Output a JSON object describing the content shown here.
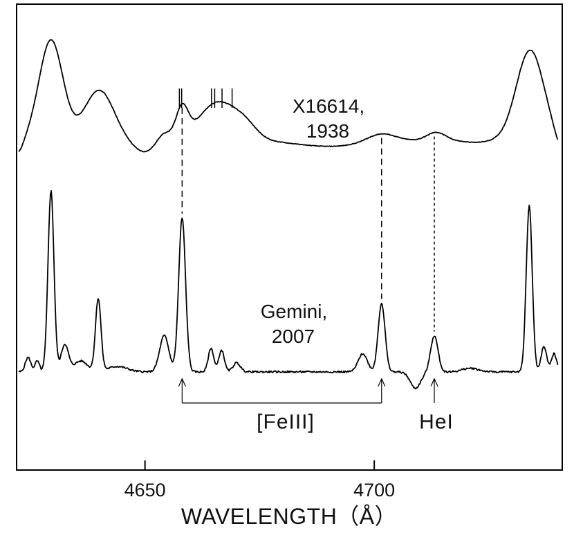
{
  "chart_data": {
    "type": "line",
    "xlabel": "WAVELENGTH（Å）",
    "ylabel": "",
    "xlim": [
      4622,
      4741
    ],
    "xticks": [
      4650,
      4700
    ],
    "xtick_labels": [
      "4650",
      "4700"
    ],
    "grid": false,
    "series": [
      {
        "name": "X16614, 1938",
        "label_lines": [
          "X16614,",
          "1938"
        ],
        "peaks": [
          {
            "x": 4629.5,
            "height": 1.0,
            "width": 2.6
          },
          {
            "x": 4640.0,
            "height": 0.5,
            "width": 3.2
          },
          {
            "x": 4654.0,
            "height": 0.1,
            "width": 1.6
          },
          {
            "x": 4658.1,
            "height": 0.3,
            "width": 1.3
          },
          {
            "x": 4666.0,
            "height": 0.38,
            "width": 4.2
          },
          {
            "x": 4672.0,
            "height": 0.1,
            "width": 2.5
          },
          {
            "x": 4701.5,
            "height": 0.08,
            "width": 3.0
          },
          {
            "x": 4713.5,
            "height": 0.08,
            "width": 2.0
          },
          {
            "x": 4734.0,
            "height": 0.9,
            "width": 3.0
          }
        ]
      },
      {
        "name": "Gemini, 2007",
        "label_lines": [
          "Gemini,",
          "2007"
        ],
        "peaks": [
          {
            "x": 4624.5,
            "height": 0.08,
            "width": 0.6
          },
          {
            "x": 4626.5,
            "height": 0.06,
            "width": 0.5
          },
          {
            "x": 4629.5,
            "height": 1.0,
            "width": 0.65
          },
          {
            "x": 4632.5,
            "height": 0.15,
            "width": 0.8
          },
          {
            "x": 4636.0,
            "height": 0.06,
            "width": 1.5
          },
          {
            "x": 4639.8,
            "height": 0.4,
            "width": 0.6
          },
          {
            "x": 4654.2,
            "height": 0.2,
            "width": 1.0
          },
          {
            "x": 4658.1,
            "height": 0.85,
            "width": 0.75
          },
          {
            "x": 4664.4,
            "height": 0.13,
            "width": 0.6
          },
          {
            "x": 4666.7,
            "height": 0.12,
            "width": 0.6
          },
          {
            "x": 4670.0,
            "height": 0.05,
            "width": 0.8
          },
          {
            "x": 4697.5,
            "height": 0.1,
            "width": 1.0
          },
          {
            "x": 4701.6,
            "height": 0.38,
            "width": 0.75
          },
          {
            "x": 4713.1,
            "height": 0.2,
            "width": 0.8
          },
          {
            "x": 4733.8,
            "height": 0.92,
            "width": 0.65
          },
          {
            "x": 4737.0,
            "height": 0.14,
            "width": 0.6
          },
          {
            "x": 4739.2,
            "height": 0.1,
            "width": 0.6
          }
        ]
      }
    ],
    "tick_marks_1938": [
      4657.5,
      4658.0,
      4664.5,
      4665.2,
      4666.8,
      4669.0
    ],
    "line_markers": [
      {
        "x": 4658.1,
        "label": "[Fe III]",
        "group": "Fe III"
      },
      {
        "x": 4701.6,
        "label": "[Fe III]",
        "group": "Fe III"
      },
      {
        "x": 4713.1,
        "label": "He I",
        "group": "He I"
      }
    ],
    "annotations": {
      "fe3_label": "[FeIII]",
      "he1_label": "HeI"
    }
  }
}
